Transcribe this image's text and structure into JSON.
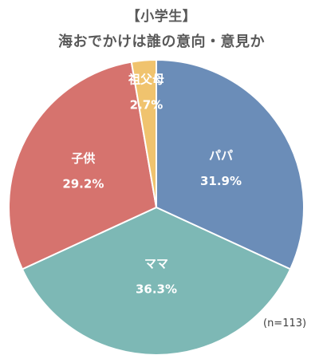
{
  "chart_data": {
    "type": "pie",
    "title": "【小学生】",
    "subtitle": "海おでかけは誰の意向・意見か",
    "note": "(n=113)",
    "slices": [
      {
        "label": "パパ",
        "value": 31.9,
        "display": "31.9%",
        "color": "#6b8db8"
      },
      {
        "label": "ママ",
        "value": 36.3,
        "display": "36.3%",
        "color": "#7db8b5"
      },
      {
        "label": "子供",
        "value": 29.2,
        "display": "29.2%",
        "color": "#d6736e"
      },
      {
        "label": "祖父母",
        "value": 2.7,
        "display": "2.7%",
        "color": "#f0c36e"
      }
    ]
  }
}
